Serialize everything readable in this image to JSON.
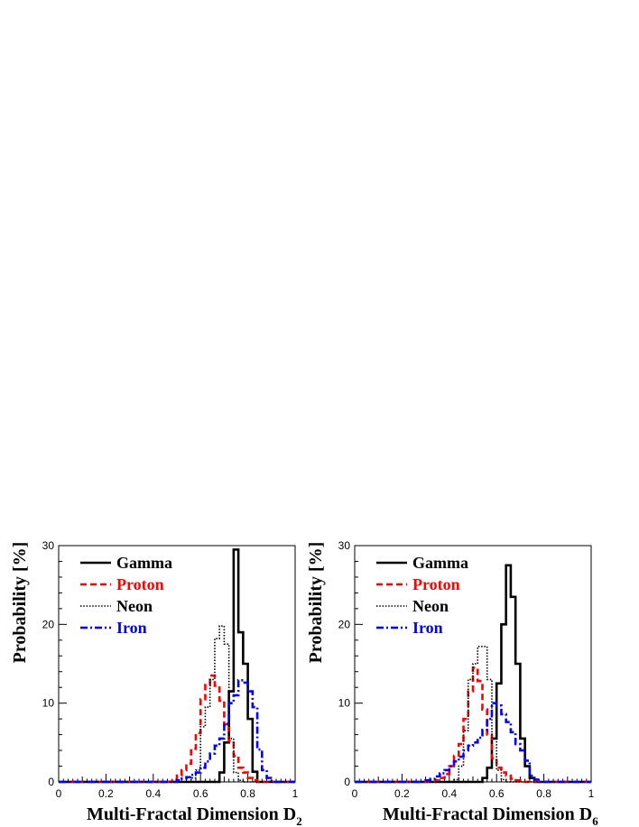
{
  "chart_data": [
    {
      "type": "histogram",
      "ylabel": "Probability [%]",
      "xlabel": "Multi-Fractal Dimension D",
      "xlabel_sub": "2",
      "xlim": [
        0,
        1
      ],
      "ylim": [
        0,
        30
      ],
      "x_ticks": [
        "0",
        "0.2",
        "0.4",
        "0.6",
        "0.8",
        "1"
      ],
      "y_ticks": [
        "0",
        "10",
        "20",
        "30"
      ],
      "bin_width": 0.02,
      "legend_position": "top-left",
      "series": [
        {
          "name": "Gamma",
          "color": "#000000",
          "style": "solid",
          "bins": [
            [
              0.68,
              1.2
            ],
            [
              0.7,
              5
            ],
            [
              0.72,
              11.5
            ],
            [
              0.74,
              29.5
            ],
            [
              0.76,
              19
            ],
            [
              0.78,
              15
            ],
            [
              0.8,
              8
            ],
            [
              0.82,
              1.3
            ],
            [
              0.84,
              0
            ]
          ]
        },
        {
          "name": "Proton",
          "color": "#ff0000",
          "style": "dashed",
          "bins": [
            [
              0.48,
              0.3
            ],
            [
              0.5,
              0.8
            ],
            [
              0.52,
              1.5
            ],
            [
              0.54,
              2.3
            ],
            [
              0.56,
              4.2
            ],
            [
              0.58,
              6.2
            ],
            [
              0.6,
              10.5
            ],
            [
              0.62,
              12.3
            ],
            [
              0.64,
              13.5
            ],
            [
              0.66,
              12.2
            ],
            [
              0.68,
              10.3
            ],
            [
              0.7,
              7.3
            ],
            [
              0.72,
              5.2
            ],
            [
              0.74,
              3.3
            ],
            [
              0.76,
              1.8
            ],
            [
              0.78,
              1.2
            ],
            [
              0.8,
              0.5
            ],
            [
              0.82,
              0.2
            ]
          ]
        },
        {
          "name": "Neon",
          "color": "#000000",
          "style": "dotted",
          "bins": [
            [
              0.56,
              0.5
            ],
            [
              0.58,
              1.5
            ],
            [
              0.6,
              7
            ],
            [
              0.62,
              9.5
            ],
            [
              0.64,
              13
            ],
            [
              0.66,
              18.2
            ],
            [
              0.68,
              19.8
            ],
            [
              0.7,
              17.5
            ],
            [
              0.72,
              5.5
            ],
            [
              0.74,
              1.2
            ],
            [
              0.76,
              0.2
            ]
          ]
        },
        {
          "name": "Iron",
          "color": "#0000ff",
          "style": "dashdot",
          "bins": [
            [
              0.5,
              0.2
            ],
            [
              0.52,
              0.4
            ],
            [
              0.54,
              0.6
            ],
            [
              0.56,
              0.9
            ],
            [
              0.58,
              1.2
            ],
            [
              0.6,
              1.8
            ],
            [
              0.62,
              2.6
            ],
            [
              0.64,
              3.6
            ],
            [
              0.66,
              4.6
            ],
            [
              0.68,
              5.5
            ],
            [
              0.7,
              7.4
            ],
            [
              0.72,
              10
            ],
            [
              0.74,
              11
            ],
            [
              0.76,
              12.9
            ],
            [
              0.78,
              12.6
            ],
            [
              0.8,
              11.5
            ],
            [
              0.82,
              9.5
            ],
            [
              0.84,
              4.1
            ],
            [
              0.86,
              1.5
            ],
            [
              0.88,
              0.5
            ]
          ]
        }
      ]
    },
    {
      "type": "histogram",
      "ylabel": "Probability [%]",
      "xlabel": "Multi-Fractal Dimension D",
      "xlabel_sub": "6",
      "xlim": [
        0,
        1
      ],
      "ylim": [
        0,
        30
      ],
      "x_ticks": [
        "0",
        "0.2",
        "0.4",
        "0.6",
        "0.8",
        "1"
      ],
      "y_ticks": [
        "0",
        "10",
        "20",
        "30"
      ],
      "bin_width": 0.02,
      "legend_position": "top-left",
      "series": [
        {
          "name": "Gamma",
          "color": "#000000",
          "style": "solid",
          "bins": [
            [
              0.54,
              0.5
            ],
            [
              0.56,
              1.8
            ],
            [
              0.58,
              5.5
            ],
            [
              0.6,
              12.5
            ],
            [
              0.62,
              20
            ],
            [
              0.64,
              27.5
            ],
            [
              0.66,
              23.5
            ],
            [
              0.68,
              15
            ],
            [
              0.7,
              5.5
            ],
            [
              0.72,
              2
            ],
            [
              0.74,
              0.5
            ]
          ]
        },
        {
          "name": "Proton",
          "color": "#ff0000",
          "style": "dashed",
          "bins": [
            [
              0.34,
              0.2
            ],
            [
              0.36,
              0.5
            ],
            [
              0.38,
              1
            ],
            [
              0.4,
              2
            ],
            [
              0.42,
              3.3
            ],
            [
              0.44,
              4.8
            ],
            [
              0.46,
              8
            ],
            [
              0.48,
              11.5
            ],
            [
              0.5,
              14.5
            ],
            [
              0.52,
              12.8
            ],
            [
              0.54,
              9.2
            ],
            [
              0.56,
              6
            ],
            [
              0.58,
              3
            ],
            [
              0.6,
              1.8
            ],
            [
              0.62,
              1.2
            ],
            [
              0.64,
              0.8
            ],
            [
              0.66,
              0.4
            ],
            [
              0.68,
              0.2
            ]
          ]
        },
        {
          "name": "Neon",
          "color": "#000000",
          "style": "dotted",
          "bins": [
            [
              0.42,
              0.3
            ],
            [
              0.44,
              2
            ],
            [
              0.46,
              6.5
            ],
            [
              0.48,
              13
            ],
            [
              0.5,
              15
            ],
            [
              0.52,
              17.2
            ],
            [
              0.54,
              17.2
            ],
            [
              0.56,
              13
            ],
            [
              0.58,
              5.5
            ],
            [
              0.6,
              1.5
            ],
            [
              0.62,
              0.3
            ]
          ]
        },
        {
          "name": "Iron",
          "color": "#0000ff",
          "style": "dashdot",
          "bins": [
            [
              0.3,
              0.2
            ],
            [
              0.32,
              0.4
            ],
            [
              0.34,
              0.7
            ],
            [
              0.36,
              1.1
            ],
            [
              0.38,
              1.5
            ],
            [
              0.4,
              2
            ],
            [
              0.42,
              2.6
            ],
            [
              0.44,
              3.2
            ],
            [
              0.46,
              4
            ],
            [
              0.48,
              4.6
            ],
            [
              0.5,
              5
            ],
            [
              0.52,
              5.6
            ],
            [
              0.54,
              6.6
            ],
            [
              0.56,
              8
            ],
            [
              0.58,
              10
            ],
            [
              0.6,
              9.7
            ],
            [
              0.62,
              8.6
            ],
            [
              0.64,
              7.6
            ],
            [
              0.66,
              6.3
            ],
            [
              0.68,
              4.8
            ],
            [
              0.7,
              4
            ],
            [
              0.72,
              2.7
            ],
            [
              0.74,
              0.8
            ],
            [
              0.76,
              0.3
            ]
          ]
        }
      ]
    }
  ]
}
